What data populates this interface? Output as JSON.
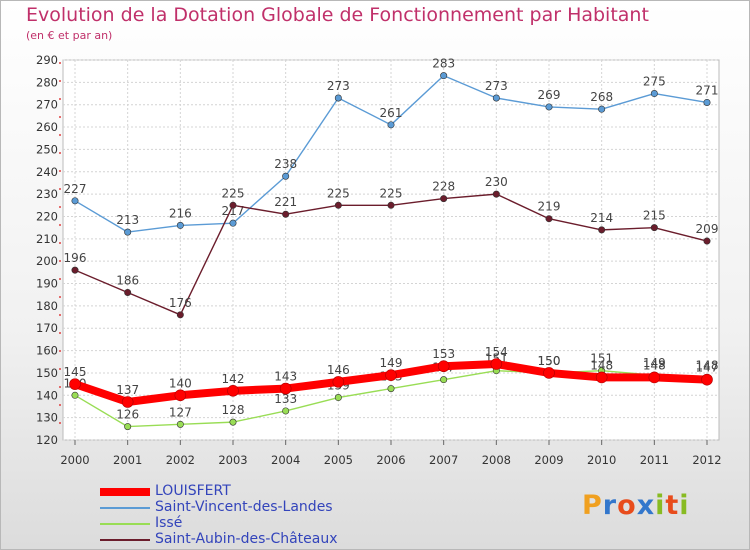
{
  "chart_data": {
    "type": "line",
    "title": "Evolution de la Dotation Globale de Fonctionnement par Habitant",
    "subtitle": "(en € et par an)",
    "x": [
      "2000",
      "2001",
      "2002",
      "2003",
      "2004",
      "2005",
      "2006",
      "2007",
      "2008",
      "2009",
      "2010",
      "2011",
      "2012"
    ],
    "ylim": [
      120,
      290
    ],
    "yticks": [
      120,
      130,
      140,
      150,
      160,
      170,
      180,
      190,
      200,
      210,
      220,
      230,
      240,
      250,
      260,
      270,
      280,
      290
    ],
    "grid": true,
    "legend_position": "bottom-left",
    "series": [
      {
        "name": "Saint-Vincent-des-Landes",
        "color": "#5b9bd5",
        "values": [
          227,
          213,
          216,
          217,
          238,
          273,
          261,
          283,
          273,
          269,
          268,
          275,
          271
        ]
      },
      {
        "name": "Saint-Aubin-des-Châteaux",
        "color": "#6b1d2c",
        "values": [
          196,
          186,
          176,
          225,
          221,
          225,
          225,
          228,
          230,
          219,
          214,
          215,
          209
        ]
      },
      {
        "name": "Issé",
        "color": "#99dd55",
        "values": [
          140,
          126,
          127,
          128,
          133,
          139,
          143,
          147,
          151,
          150,
          151,
          149,
          148
        ]
      },
      {
        "name": "LOUISFERT",
        "color": "#ff0000",
        "values": [
          145,
          137,
          140,
          142,
          143,
          146,
          149,
          153,
          154,
          150,
          148,
          148,
          147
        ]
      }
    ],
    "legend_order": [
      "LOUISFERT",
      "Saint-Vincent-des-Landes",
      "Issé",
      "Saint-Aubin-des-Châteaux"
    ]
  },
  "logo": {
    "letters": [
      "P",
      "r",
      "o",
      "x",
      "i",
      "t",
      "i"
    ],
    "colors": [
      "#f0a020",
      "#3377cc",
      "#e84c1c",
      "#3377cc",
      "#88bb22",
      "#e84c1c",
      "#88bb22"
    ]
  }
}
